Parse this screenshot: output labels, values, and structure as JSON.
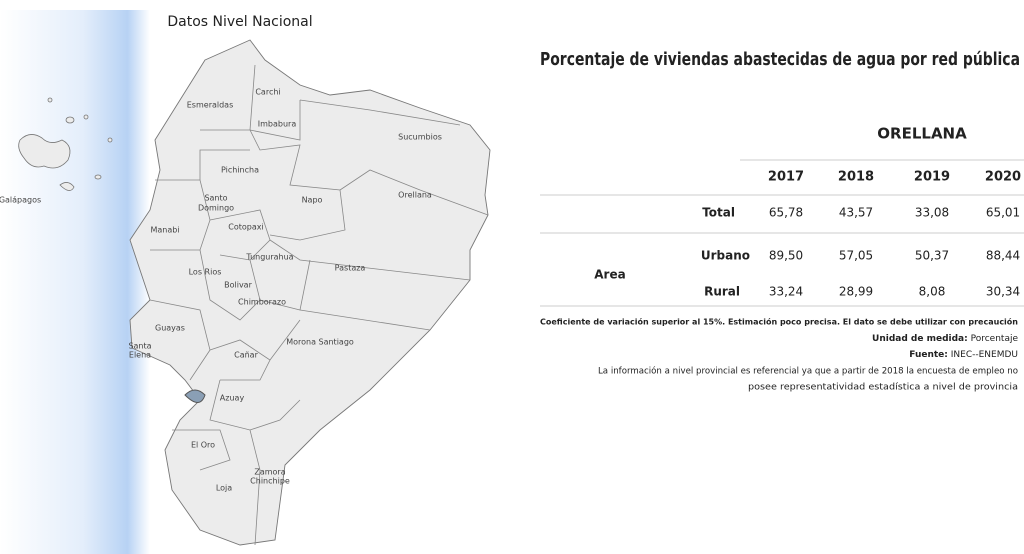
{
  "map": {
    "title": "Datos Nivel Nacional",
    "provinces": [
      "Esmeraldas",
      "Carchi",
      "Imbabura",
      "Sucumbios",
      "Pichincha",
      "Napo",
      "Orellana",
      "Santo",
      "Domingo",
      "Manabi",
      "Cotopaxi",
      "Tungurahua",
      "Pastaza",
      "Los Rios",
      "Bolivar",
      "Chimborazo",
      "Guayas",
      "Santa",
      "Elena",
      "Morona Santiago",
      "Cañar",
      "Azuay",
      "El Oro",
      "Zamora",
      "Chinchipe",
      "Loja",
      "Galápagos"
    ]
  },
  "table": {
    "title": "Porcentaje de viviendas abastecidas de agua por red pública",
    "region": "ORELLANA",
    "years": [
      "2017",
      "2018",
      "2019",
      "2020"
    ],
    "group": "Area",
    "rows": [
      {
        "label": "Total",
        "values": [
          "65,78",
          "43,57",
          "33,08",
          "65,01"
        ],
        "flagged": [
          false,
          true,
          true,
          false
        ]
      },
      {
        "label": "Urbano",
        "values": [
          "89,50",
          "57,05",
          "50,37",
          "88,44"
        ],
        "flagged": [
          false,
          true,
          true,
          false
        ]
      },
      {
        "label": "Rural",
        "values": [
          "33,24",
          "28,99",
          "8,08",
          "30,34"
        ],
        "flagged": [
          true,
          true,
          true,
          true
        ]
      }
    ],
    "flag_color": "#3a6fb5",
    "notes": {
      "cv": "Coeficiente de variación superior al 15%. Estimación poco precisa. El dato se debe utilizar con precaución",
      "unit_label": "Unidad de medida:",
      "unit": "Porcentaje",
      "source_label": "Fuente:",
      "source": "INEC--ENEMDU",
      "disclaimer": [
        "La información a nivel provincial es referencial ya que a partir de 2018 la encuesta de empleo no",
        "posee representatividad estadística a nivel de provincia"
      ]
    }
  }
}
